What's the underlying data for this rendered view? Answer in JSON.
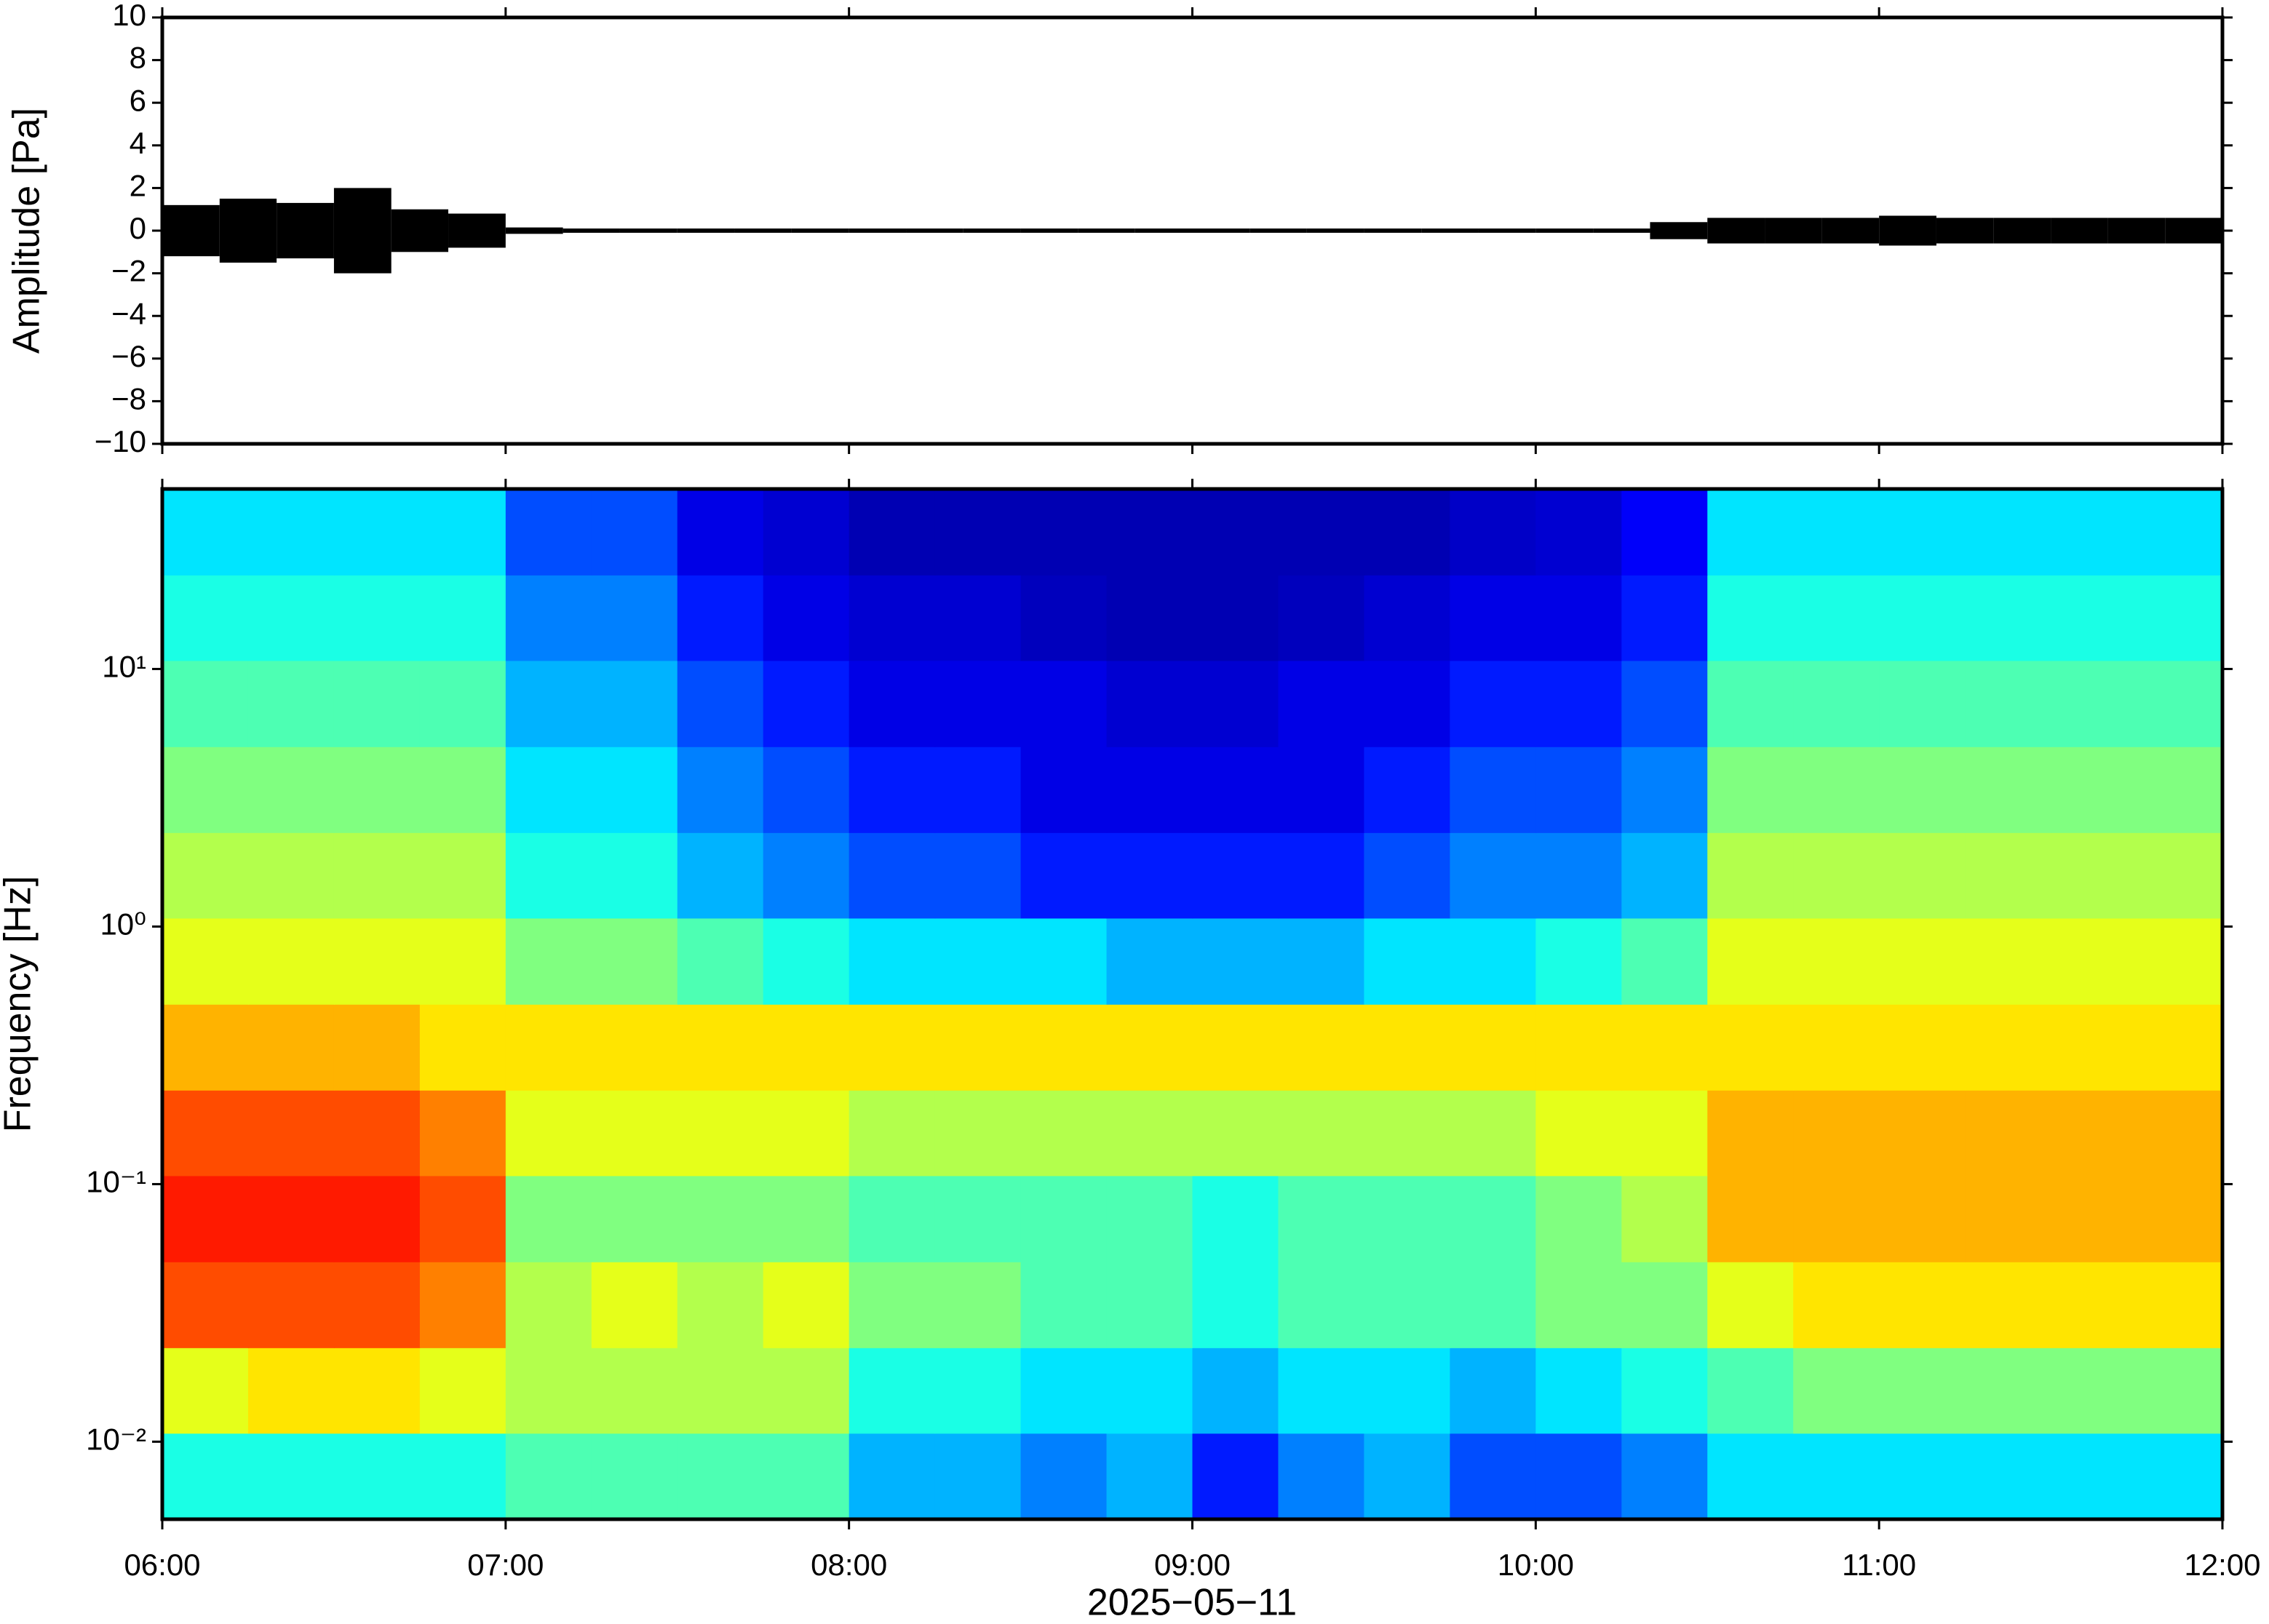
{
  "chart_data": [
    {
      "type": "envelope",
      "ylabel": "Amplitude [Pa]",
      "color": "#000000",
      "xlim": [
        6,
        12
      ],
      "ylim": [
        -10,
        10
      ],
      "yticks": [
        {
          "value": -10,
          "label": "−10"
        },
        {
          "value": -8,
          "label": "−8"
        },
        {
          "value": -6,
          "label": "−6"
        },
        {
          "value": -4,
          "label": "−4"
        },
        {
          "value": -2,
          "label": "−2"
        },
        0,
        2,
        4,
        6,
        8,
        10
      ],
      "x": [
        6,
        6.167,
        6.333,
        6.5,
        6.667,
        6.833,
        7,
        7.167,
        7.333,
        7.5,
        7.667,
        7.833,
        8,
        8.167,
        8.333,
        8.5,
        8.667,
        8.833,
        9,
        9.167,
        9.333,
        9.5,
        9.667,
        9.833,
        10,
        10.167,
        10.333,
        10.5,
        10.667,
        10.833,
        11,
        11.167,
        11.333,
        11.5,
        11.667,
        11.833
      ],
      "values": [
        1.2,
        1.5,
        1.3,
        2.0,
        1.0,
        0.8,
        0.15,
        0.1,
        0.1,
        0.1,
        0.1,
        0.1,
        0.1,
        0.1,
        0.1,
        0.1,
        0.1,
        0.1,
        0.1,
        0.1,
        0.1,
        0.1,
        0.1,
        0.1,
        0.1,
        0.1,
        0.4,
        0.6,
        0.6,
        0.6,
        0.7,
        0.6,
        0.6,
        0.6,
        0.6,
        0.6
      ]
    },
    {
      "type": "heatmap",
      "ylabel": "Frequency [Hz]",
      "xlabel": "2025−05−11",
      "log_y": true,
      "colormap": "jet",
      "zlim": [
        0,
        10
      ],
      "xlim": [
        6,
        12
      ],
      "ylim": [
        0.005,
        50
      ],
      "xticks": [
        {
          "value": 6,
          "label": "06:00"
        },
        {
          "value": 7,
          "label": "07:00"
        },
        {
          "value": 8,
          "label": "08:00"
        },
        {
          "value": 9,
          "label": "09:00"
        },
        {
          "value": 10,
          "label": "10:00"
        },
        {
          "value": 11,
          "label": "11:00"
        },
        {
          "value": 12,
          "label": "12:00"
        }
      ],
      "yticks": [
        {
          "value": 0.01,
          "label": "10⁻²"
        },
        {
          "value": 0.1,
          "label": "10⁻¹"
        },
        {
          "value": 1,
          "label": "10⁰"
        },
        {
          "value": 10,
          "label": "10¹"
        }
      ],
      "xbins": [
        6,
        6.25,
        6.5,
        6.75,
        7,
        7.25,
        7.5,
        7.75,
        8,
        8.25,
        8.5,
        8.75,
        9,
        9.25,
        9.5,
        9.75,
        10,
        10.25,
        10.5,
        10.75,
        11,
        11.25,
        11.5,
        11.75,
        12
      ],
      "ybins": [
        0.005,
        0.0108,
        0.0232,
        0.05,
        0.108,
        0.232,
        0.5,
        1.08,
        2.32,
        5,
        10.8,
        23.2,
        50
      ],
      "z": [
        [
          4,
          4,
          4,
          4,
          4.5,
          4.5,
          4.5,
          4.5,
          3,
          3,
          2.5,
          3,
          1.5,
          2.5,
          3,
          2,
          2,
          2.5,
          3.5,
          3.5,
          3.5,
          3.5,
          3.5,
          3.5
        ],
        [
          6,
          6.5,
          6.5,
          6,
          5.5,
          5.5,
          5.5,
          5.5,
          4,
          4,
          3.5,
          3.5,
          3,
          3.5,
          3.5,
          3,
          3.5,
          4,
          4.5,
          5,
          5,
          5,
          5,
          5
        ],
        [
          8,
          8,
          8,
          7.5,
          5.5,
          6,
          5.5,
          6,
          5,
          5,
          4.5,
          4.5,
          4,
          4.5,
          4.5,
          4.5,
          5,
          5,
          6,
          6.5,
          6.5,
          6.5,
          6.5,
          6.5
        ],
        [
          8.5,
          8.5,
          8.5,
          8,
          5,
          5,
          5,
          5,
          4.5,
          4.5,
          4.5,
          4.5,
          4,
          4.5,
          4.5,
          4.5,
          5,
          5.5,
          7,
          7,
          7,
          7,
          7,
          7
        ],
        [
          8,
          8,
          8,
          7.5,
          6,
          6,
          6,
          6,
          5.5,
          5.5,
          5.5,
          5.5,
          5.5,
          5.5,
          5.5,
          5.5,
          6,
          6,
          7,
          7,
          7,
          7,
          7,
          7
        ],
        [
          7,
          7,
          7,
          6.5,
          6.5,
          6.5,
          6.5,
          6.5,
          6.5,
          6.5,
          6.5,
          6.5,
          6.5,
          6.5,
          6.5,
          6.5,
          6.5,
          6.5,
          6.5,
          6.5,
          6.5,
          6.5,
          6.5,
          6.5
        ],
        [
          6,
          6,
          6,
          6,
          5,
          5,
          4.5,
          4,
          3.5,
          3.5,
          3.5,
          3,
          3,
          3,
          3.5,
          3.5,
          4,
          4.5,
          6,
          6,
          6,
          6,
          6,
          6
        ],
        [
          5.5,
          5.5,
          5.5,
          5.5,
          4,
          4,
          3,
          2.5,
          2,
          2,
          1.5,
          1.5,
          1.5,
          1.5,
          2,
          2.5,
          2.5,
          3,
          5.5,
          5.5,
          5.5,
          5.5,
          5.5,
          5.5
        ],
        [
          5,
          5,
          5,
          5,
          3.5,
          3.5,
          2.5,
          2,
          1.5,
          1.5,
          1,
          1,
          1,
          1,
          1.5,
          2,
          2,
          2.5,
          5,
          5,
          5,
          5,
          5,
          5
        ],
        [
          4.5,
          4.5,
          4.5,
          4.5,
          3,
          3,
          2,
          1.5,
          1,
          1,
          1,
          0.8,
          0.8,
          1,
          1,
          1.5,
          1.5,
          2,
          4.5,
          4.5,
          4.5,
          4.5,
          4.5,
          4.5
        ],
        [
          4,
          4,
          4,
          4,
          2.5,
          2.5,
          1.5,
          1,
          0.8,
          0.8,
          0.6,
          0.5,
          0.5,
          0.6,
          0.8,
          1,
          1,
          1.5,
          4,
          4,
          4,
          4,
          4,
          4
        ],
        [
          3.5,
          3.5,
          3.5,
          3.5,
          2,
          2,
          1,
          0.8,
          0.5,
          0.5,
          0.5,
          0.5,
          0.5,
          0.5,
          0.5,
          0.7,
          0.8,
          1.2,
          3.5,
          3.5,
          3.5,
          3.5,
          3.5,
          3.5
        ]
      ]
    }
  ]
}
